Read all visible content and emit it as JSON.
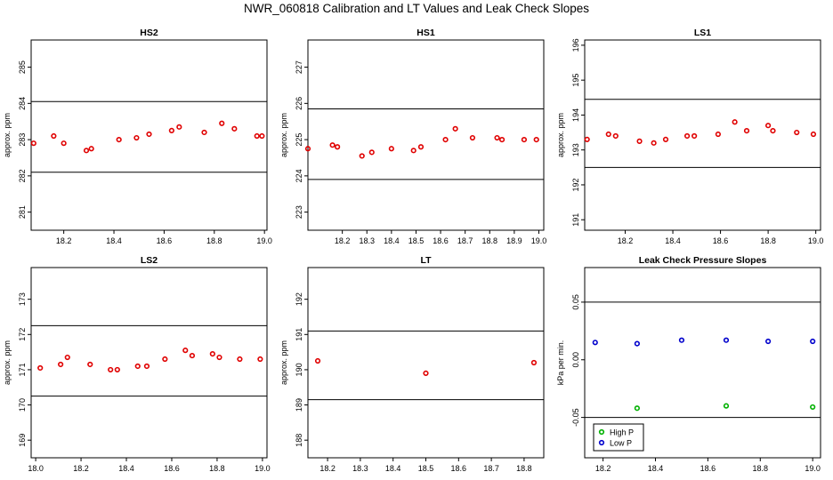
{
  "page_title": "NWR_060818  Calibration and LT Values and Leak Check Slopes",
  "colors": {
    "red_points": "#e00000",
    "green_points": "#00b000",
    "blue_points": "#0000cc",
    "axis": "#000000"
  },
  "chart_data": [
    {
      "type": "scatter",
      "title": "HS2",
      "ylabel": "approx. ppm",
      "xlim": [
        18.07,
        19.01
      ],
      "ylim": [
        280.5,
        285.75
      ],
      "x_ticks": [
        18.2,
        18.4,
        18.6,
        18.8,
        19.0
      ],
      "x_tick_labels": [
        "18.2",
        "18.4",
        "18.6",
        "18.8",
        "19.0"
      ],
      "y_ticks": [
        281,
        282,
        283,
        284,
        285
      ],
      "y_tick_labels": [
        "281",
        "282",
        "283",
        "284",
        "285"
      ],
      "hlines": [
        282.1,
        284.05
      ],
      "series": [
        {
          "color": "#e00000",
          "marker": "circle",
          "x": [
            18.08,
            18.16,
            18.2,
            18.29,
            18.31,
            18.42,
            18.49,
            18.54,
            18.63,
            18.66,
            18.76,
            18.83,
            18.88,
            18.97,
            18.99
          ],
          "y": [
            282.9,
            283.1,
            282.9,
            282.7,
            282.75,
            283.0,
            283.05,
            283.15,
            283.25,
            283.35,
            283.2,
            283.45,
            283.3,
            283.1,
            283.1
          ]
        }
      ]
    },
    {
      "type": "scatter",
      "title": "HS1",
      "ylabel": "approx. ppm",
      "xlim": [
        18.06,
        19.02
      ],
      "ylim": [
        222.5,
        227.75
      ],
      "x_ticks": [
        18.2,
        18.3,
        18.4,
        18.5,
        18.6,
        18.7,
        18.8,
        18.9,
        19.0
      ],
      "x_tick_labels": [
        "18.2",
        "18.3",
        "18.4",
        "18.5",
        "18.6",
        "18.7",
        "18.8",
        "18.9",
        "19.0"
      ],
      "y_ticks": [
        223,
        224,
        225,
        226,
        227
      ],
      "y_tick_labels": [
        "223",
        "224",
        "225",
        "226",
        "227"
      ],
      "hlines": [
        223.9,
        225.85
      ],
      "series": [
        {
          "color": "#e00000",
          "marker": "circle",
          "x": [
            18.06,
            18.16,
            18.18,
            18.28,
            18.32,
            18.4,
            18.49,
            18.52,
            18.62,
            18.66,
            18.73,
            18.83,
            18.85,
            18.94,
            18.99
          ],
          "y": [
            224.75,
            224.85,
            224.8,
            224.55,
            224.65,
            224.75,
            224.7,
            224.8,
            225.0,
            225.3,
            225.05,
            225.05,
            225.0,
            225.0,
            225.0
          ]
        }
      ]
    },
    {
      "type": "scatter",
      "title": "LS1",
      "ylabel": "approx. ppm",
      "xlim": [
        18.03,
        19.02
      ],
      "ylim": [
        190.7,
        196.15
      ],
      "x_ticks": [
        18.2,
        18.4,
        18.6,
        18.8,
        19.0
      ],
      "x_tick_labels": [
        "18.2",
        "18.4",
        "18.6",
        "18.8",
        "19.0"
      ],
      "y_ticks": [
        191,
        192,
        193,
        194,
        195,
        196
      ],
      "y_tick_labels": [
        "191",
        "192",
        "193",
        "194",
        "195",
        "196"
      ],
      "hlines": [
        192.5,
        194.45
      ],
      "series": [
        {
          "color": "#e00000",
          "marker": "circle",
          "x": [
            18.04,
            18.13,
            18.16,
            18.26,
            18.32,
            18.37,
            18.46,
            18.49,
            18.59,
            18.66,
            18.71,
            18.8,
            18.82,
            18.92,
            18.99
          ],
          "y": [
            193.3,
            193.45,
            193.4,
            193.25,
            193.2,
            193.3,
            193.4,
            193.4,
            193.45,
            193.8,
            193.55,
            193.7,
            193.55,
            193.5,
            193.45
          ]
        }
      ]
    },
    {
      "type": "scatter",
      "title": "LS2",
      "ylabel": "approx. ppm",
      "xlim": [
        17.98,
        19.02
      ],
      "ylim": [
        168.5,
        173.9
      ],
      "x_ticks": [
        18.0,
        18.2,
        18.4,
        18.6,
        18.8,
        19.0
      ],
      "x_tick_labels": [
        "18.0",
        "18.2",
        "18.4",
        "18.6",
        "18.8",
        "19.0"
      ],
      "y_ticks": [
        169,
        170,
        171,
        172,
        173
      ],
      "y_tick_labels": [
        "169",
        "170",
        "171",
        "172",
        "173"
      ],
      "hlines": [
        170.25,
        172.25
      ],
      "series": [
        {
          "color": "#e00000",
          "marker": "circle",
          "x": [
            18.02,
            18.11,
            18.14,
            18.24,
            18.33,
            18.36,
            18.45,
            18.49,
            18.57,
            18.66,
            18.69,
            18.78,
            18.81,
            18.9,
            18.99
          ],
          "y": [
            171.05,
            171.15,
            171.35,
            171.15,
            171.0,
            171.0,
            171.1,
            171.1,
            171.3,
            171.55,
            171.4,
            171.45,
            171.35,
            171.3,
            171.3
          ]
        }
      ]
    },
    {
      "type": "scatter",
      "title": "LT",
      "ylabel": "approx. ppm",
      "xlim": [
        18.14,
        18.86
      ],
      "ylim": [
        187.5,
        192.9
      ],
      "x_ticks": [
        18.2,
        18.3,
        18.4,
        18.5,
        18.6,
        18.7,
        18.8
      ],
      "x_tick_labels": [
        "18.2",
        "18.3",
        "18.4",
        "18.5",
        "18.6",
        "18.7",
        "18.8"
      ],
      "y_ticks": [
        188,
        189,
        190,
        191,
        192
      ],
      "y_tick_labels": [
        "188",
        "189",
        "190",
        "191",
        "192"
      ],
      "hlines": [
        189.15,
        191.1
      ],
      "series": [
        {
          "color": "#e00000",
          "marker": "circle",
          "x": [
            18.17,
            18.5,
            18.83
          ],
          "y": [
            190.25,
            189.9,
            190.2
          ]
        }
      ]
    },
    {
      "type": "scatter",
      "title": "Leak Check Pressure Slopes",
      "ylabel": "kPa per min.",
      "xlim": [
        18.13,
        19.03
      ],
      "ylim": [
        -0.085,
        0.08
      ],
      "x_ticks": [
        18.2,
        18.4,
        18.6,
        18.8,
        19.0
      ],
      "x_tick_labels": [
        "18.2",
        "18.4",
        "18.6",
        "18.8",
        "19.0"
      ],
      "y_ticks": [
        -0.05,
        0.0,
        0.05
      ],
      "y_tick_labels": [
        "-0.05",
        "0.00",
        "0.05"
      ],
      "hlines": [
        -0.05,
        0.05
      ],
      "legend": {
        "position": "bottom-left",
        "entries": [
          "High P",
          "Low P"
        ]
      },
      "series": [
        {
          "name": "High P",
          "color": "#00b000",
          "marker": "circle",
          "x": [
            18.33,
            18.67,
            19.0
          ],
          "y": [
            -0.042,
            -0.04,
            -0.041
          ]
        },
        {
          "name": "Low P",
          "color": "#0000cc",
          "marker": "circle",
          "x": [
            18.17,
            18.33,
            18.5,
            18.67,
            18.83,
            19.0
          ],
          "y": [
            0.015,
            0.014,
            0.017,
            0.017,
            0.016,
            0.016
          ]
        }
      ]
    }
  ]
}
